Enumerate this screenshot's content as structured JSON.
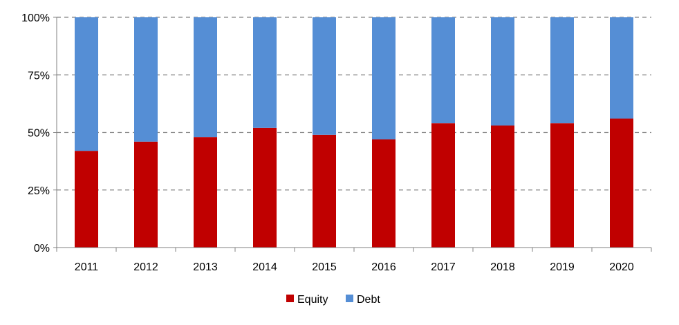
{
  "chart_data": {
    "type": "bar",
    "stacked": true,
    "percent_scale": true,
    "categories": [
      "2011",
      "2012",
      "2013",
      "2014",
      "2015",
      "2016",
      "2017",
      "2018",
      "2019",
      "2020"
    ],
    "series": [
      {
        "name": "Equity",
        "color": "#C00000",
        "values": [
          42,
          46,
          48,
          52,
          49,
          47,
          54,
          53,
          54,
          56
        ]
      },
      {
        "name": "Debt",
        "color": "#558ED5",
        "values": [
          58,
          54,
          52,
          48,
          51,
          53,
          46,
          47,
          46,
          44
        ]
      }
    ],
    "ylim": [
      0,
      100
    ],
    "yticks": [
      {
        "value": 0,
        "label": "0%"
      },
      {
        "value": 25,
        "label": "25%"
      },
      {
        "value": 50,
        "label": "50%"
      },
      {
        "value": 75,
        "label": "75%"
      },
      {
        "value": 100,
        "label": "100%"
      }
    ],
    "grid": true,
    "grid_style": "dashed",
    "legend_position": "bottom-center",
    "title": "",
    "xlabel": "",
    "ylabel": ""
  }
}
